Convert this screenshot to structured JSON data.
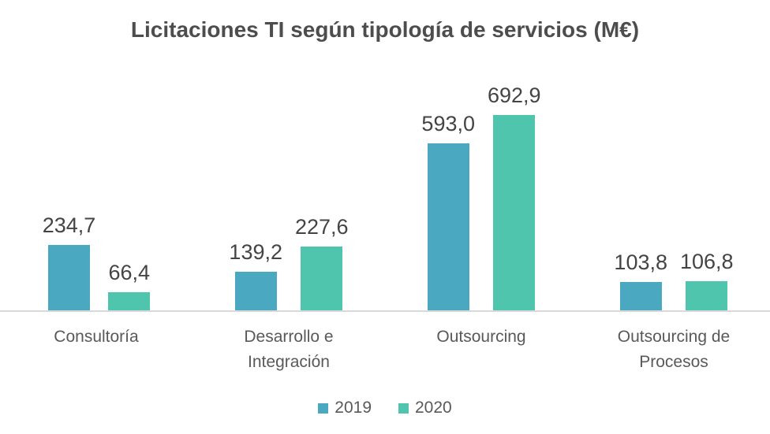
{
  "chart_data": {
    "type": "bar",
    "title": "Licitaciones TI según tipología de servicios (M€)",
    "categories": [
      "Consultoría",
      "Desarrollo e\nIntegración",
      "Outsourcing",
      "Outsourcing de\nProcesos"
    ],
    "series": [
      {
        "name": "2019",
        "color": "#4aa9c0",
        "values": [
          234.7,
          139.2,
          593.0,
          103.8
        ],
        "value_labels": [
          "234,7",
          "139,2",
          "593,0",
          "103,8"
        ]
      },
      {
        "name": "2020",
        "color": "#4fc5ad",
        "values": [
          66.4,
          227.6,
          692.9,
          106.8
        ],
        "value_labels": [
          "66,4",
          "227,6",
          "692,9",
          "106,8"
        ]
      }
    ],
    "ylim": [
      0,
      760
    ],
    "grid": false,
    "legend_position": "bottom",
    "xlabel": "",
    "ylabel": "",
    "axis_line_color": "#d9d9d9",
    "title_color": "#4d4d4d",
    "value_label_color": "#444444",
    "category_label_color": "#595959"
  }
}
